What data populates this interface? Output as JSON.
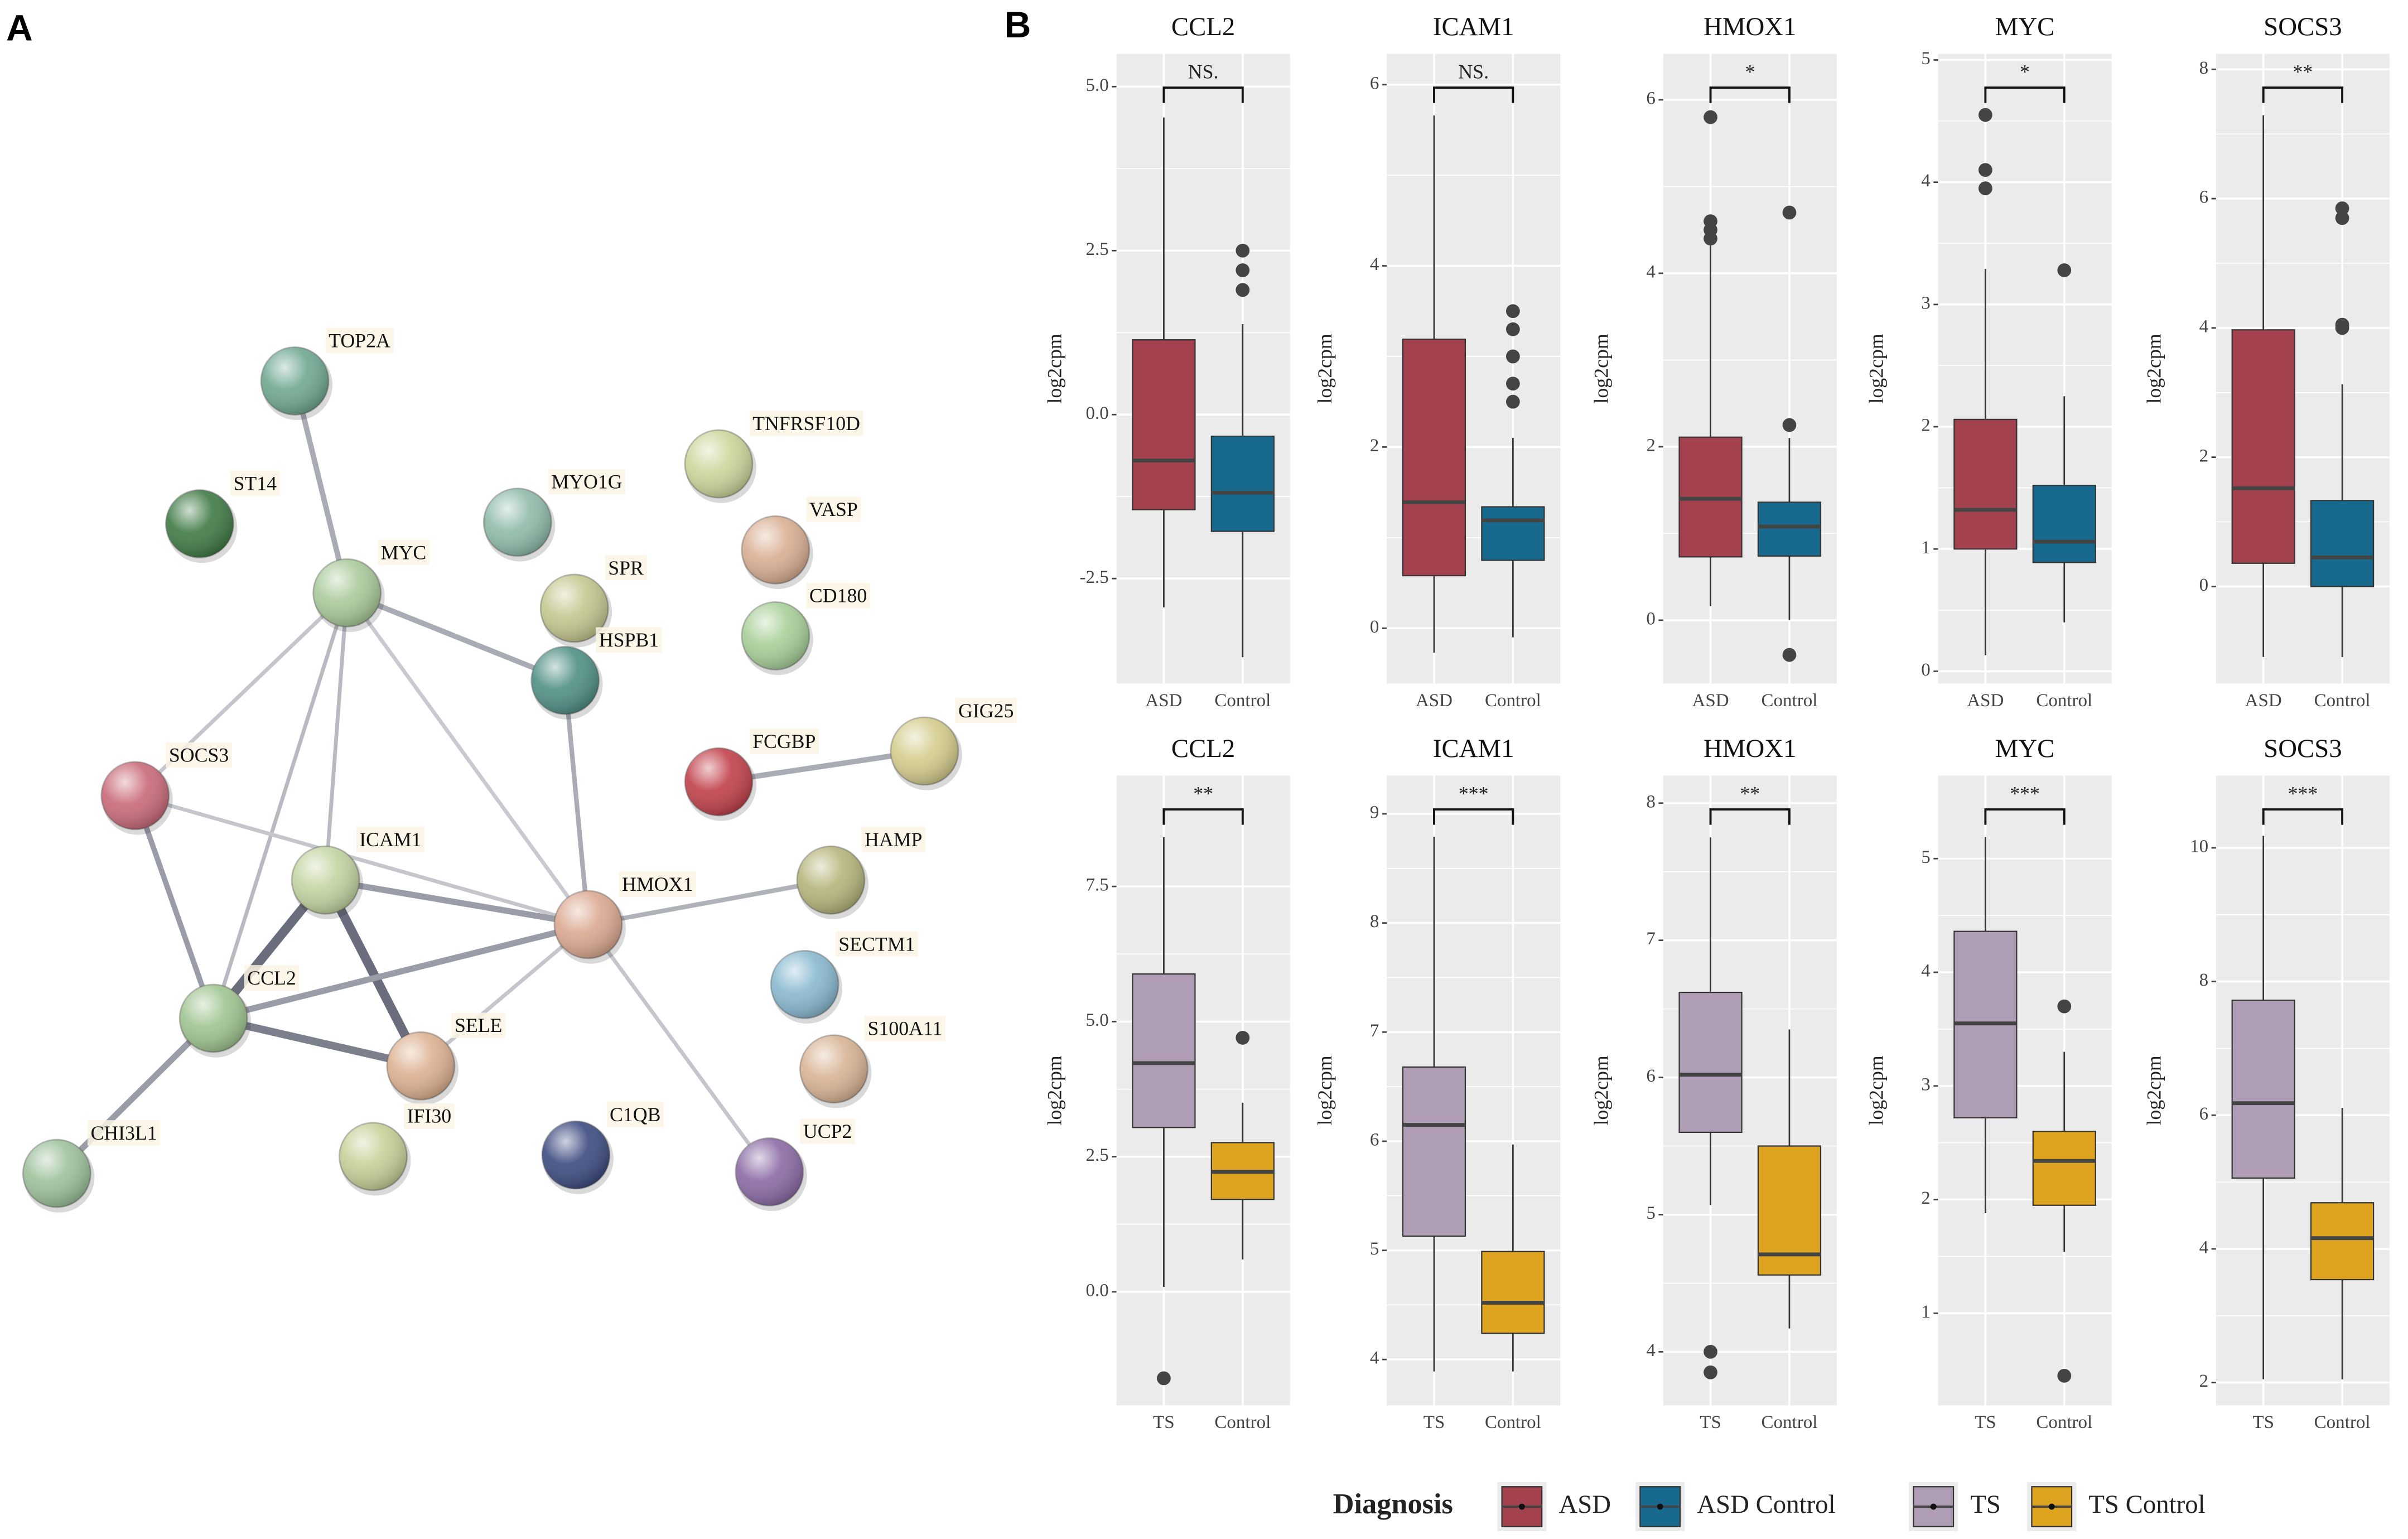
{
  "panel_a_label": "A",
  "panel_b_label": "B",
  "network": {
    "nodes": [
      {
        "label": "TOP2A",
        "color": "#6fa890"
      },
      {
        "label": "ST14",
        "color": "#3f7a45"
      },
      {
        "label": "MYC",
        "color": "#a9c99a"
      },
      {
        "label": "MYO1G",
        "color": "#8fbba8"
      },
      {
        "label": "TNFRSF10D",
        "color": "#cbd69a"
      },
      {
        "label": "VASP",
        "color": "#d9ae92"
      },
      {
        "label": "SPR",
        "color": "#c4c68e"
      },
      {
        "label": "CD180",
        "color": "#a8cf98"
      },
      {
        "label": "HSPB1",
        "color": "#4f8f85"
      },
      {
        "label": "FCGBP",
        "color": "#c1404a"
      },
      {
        "label": "GIG25",
        "color": "#d4cc8c"
      },
      {
        "label": "SOCS3",
        "color": "#c96a78"
      },
      {
        "label": "ICAM1",
        "color": "#c2d4a0"
      },
      {
        "label": "HAMP",
        "color": "#b5b47a"
      },
      {
        "label": "HMOX1",
        "color": "#dba890"
      },
      {
        "label": "SECTM1",
        "color": "#88b8cf"
      },
      {
        "label": "CCL2",
        "color": "#9fc490"
      },
      {
        "label": "SELE",
        "color": "#dcb090"
      },
      {
        "label": "S100A11",
        "color": "#d8b394"
      },
      {
        "label": "CHI3L1",
        "color": "#9cc09a"
      },
      {
        "label": "IFI30",
        "color": "#c7cf96"
      },
      {
        "label": "C1QB",
        "color": "#3c4a80"
      },
      {
        "label": "UCP2",
        "color": "#8a6aa5"
      }
    ]
  },
  "chart_data": [
    {
      "type": "box",
      "title": "CCL2",
      "ylabel": "log2cpm",
      "categories": [
        "ASD",
        "Control"
      ],
      "colors": [
        "#a3424e",
        "#176a8e"
      ],
      "ylim": [
        -4.1,
        5.5
      ],
      "yticks": [
        {
          "value": 5,
          "label": "5.0"
        },
        2.5,
        {
          "value": 0,
          "label": "0.0"
        },
        -2.5
      ],
      "significance": "NS.",
      "boxes": [
        {
          "q1": -1.45,
          "median": -0.7,
          "q3": 1.14,
          "whislo": -2.94,
          "whishi": 4.53,
          "fliers": []
        },
        {
          "q1": -1.78,
          "median": -1.19,
          "q3": -0.33,
          "whislo": -3.7,
          "whishi": 1.38,
          "fliers": [
            2.5,
            2.2,
            1.9
          ]
        }
      ]
    },
    {
      "type": "box",
      "title": "ICAM1",
      "ylabel": "log2cpm",
      "categories": [
        "ASD",
        "Control"
      ],
      "colors": [
        "#a3424e",
        "#176a8e"
      ],
      "ylim": [
        -0.61,
        6.34
      ],
      "yticks": [
        6,
        4,
        2,
        0
      ],
      "significance": "NS.",
      "boxes": [
        {
          "q1": 0.58,
          "median": 1.39,
          "q3": 3.19,
          "whislo": -0.27,
          "whishi": 5.66,
          "fliers": []
        },
        {
          "q1": 0.75,
          "median": 1.19,
          "q3": 1.34,
          "whislo": -0.1,
          "whishi": 2.1,
          "fliers": [
            3.5,
            3.3,
            3.0,
            2.7,
            2.5
          ]
        }
      ]
    },
    {
      "type": "box",
      "title": "HMOX1",
      "ylabel": "log2cpm",
      "categories": [
        "ASD",
        "Control"
      ],
      "colors": [
        "#a3424e",
        "#176a8e"
      ],
      "ylim": [
        -0.73,
        6.53
      ],
      "yticks": [
        6,
        4,
        2,
        0
      ],
      "significance": "*",
      "boxes": [
        {
          "q1": 0.73,
          "median": 1.4,
          "q3": 2.11,
          "whislo": 0.16,
          "whishi": 4.32,
          "fliers": [
            5.8,
            4.6,
            4.5,
            4.4
          ]
        },
        {
          "q1": 0.74,
          "median": 1.08,
          "q3": 1.36,
          "whislo": 0,
          "whishi": 2.1,
          "fliers": [
            4.7,
            2.25,
            -0.4
          ]
        }
      ]
    },
    {
      "type": "box",
      "title": "MYC",
      "ylabel": "log2cpm",
      "categories": [
        "ASD",
        "Control"
      ],
      "colors": [
        "#a3424e",
        "#176a8e"
      ],
      "ylim": [
        -0.1,
        5.05
      ],
      "yticks": [
        5,
        4,
        3,
        2,
        1,
        0
      ],
      "significance": "*",
      "boxes": [
        {
          "q1": 1.0,
          "median": 1.32,
          "q3": 2.06,
          "whislo": 0.13,
          "whishi": 3.29,
          "fliers": [
            4.55,
            4.1,
            3.95
          ]
        },
        {
          "q1": 0.89,
          "median": 1.06,
          "q3": 1.52,
          "whislo": 0.4,
          "whishi": 2.25,
          "fliers": [
            3.28
          ]
        }
      ]
    },
    {
      "type": "box",
      "title": "SOCS3",
      "ylabel": "log2cpm",
      "categories": [
        "ASD",
        "Control"
      ],
      "colors": [
        "#a3424e",
        "#176a8e"
      ],
      "ylim": [
        -1.5,
        8.24
      ],
      "yticks": [
        8,
        6,
        4,
        2,
        0
      ],
      "significance": "**",
      "boxes": [
        {
          "q1": 0.36,
          "median": 1.52,
          "q3": 3.97,
          "whislo": -1.09,
          "whishi": 7.29,
          "fliers": []
        },
        {
          "q1": 0,
          "median": 0.45,
          "q3": 1.33,
          "whislo": -1.09,
          "whishi": 3.13,
          "fliers": [
            5.85,
            5.7,
            4.05,
            4.0
          ]
        }
      ]
    },
    {
      "type": "box",
      "title": "CCL2",
      "ylabel": "log2cpm",
      "categories": [
        "TS",
        "Control"
      ],
      "colors": [
        "#ae9db4",
        "#dfa41f"
      ],
      "ylim": [
        -2.1,
        9.55
      ],
      "yticks": [
        7.5,
        {
          "value": 5,
          "label": "5.0"
        },
        2.5,
        {
          "value": 0,
          "label": "0.0"
        }
      ],
      "significance": "**",
      "boxes": [
        {
          "q1": 3.04,
          "median": 4.23,
          "q3": 5.88,
          "whislo": 0.09,
          "whishi": 8.41,
          "fliers": [
            -1.6
          ]
        },
        {
          "q1": 1.71,
          "median": 2.22,
          "q3": 2.76,
          "whislo": 0.6,
          "whishi": 3.5,
          "fliers": [
            4.7
          ]
        }
      ]
    },
    {
      "type": "box",
      "title": "ICAM1",
      "ylabel": "log2cpm",
      "categories": [
        "TS",
        "Control"
      ],
      "colors": [
        "#ae9db4",
        "#dfa41f"
      ],
      "ylim": [
        3.58,
        9.35
      ],
      "yticks": [
        9,
        8,
        7,
        6,
        5,
        4
      ],
      "significance": "***",
      "boxes": [
        {
          "q1": 5.13,
          "median": 6.15,
          "q3": 6.68,
          "whislo": 3.89,
          "whishi": 8.79,
          "fliers": []
        },
        {
          "q1": 4.24,
          "median": 4.52,
          "q3": 4.99,
          "whislo": 3.89,
          "whishi": 5.97,
          "fliers": []
        }
      ]
    },
    {
      "type": "box",
      "title": "HMOX1",
      "ylabel": "log2cpm",
      "categories": [
        "TS",
        "Control"
      ],
      "colors": [
        "#ae9db4",
        "#dfa41f"
      ],
      "ylim": [
        3.61,
        8.2
      ],
      "yticks": [
        8,
        7,
        6,
        5,
        4
      ],
      "significance": "**",
      "boxes": [
        {
          "q1": 5.6,
          "median": 6.02,
          "q3": 6.62,
          "whislo": 5.07,
          "whishi": 7.75,
          "fliers": [
            4.0,
            3.85
          ]
        },
        {
          "q1": 4.56,
          "median": 4.71,
          "q3": 5.5,
          "whislo": 4.17,
          "whishi": 6.35,
          "fliers": []
        }
      ]
    },
    {
      "type": "box",
      "title": "MYC",
      "ylabel": "log2cpm",
      "categories": [
        "TS",
        "Control"
      ],
      "colors": [
        "#ae9db4",
        "#dfa41f"
      ],
      "ylim": [
        0.19,
        5.73
      ],
      "yticks": [
        5,
        4,
        3,
        2,
        1
      ],
      "significance": "***",
      "boxes": [
        {
          "q1": 2.72,
          "median": 3.55,
          "q3": 4.36,
          "whislo": 1.88,
          "whishi": 5.19,
          "fliers": []
        },
        {
          "q1": 1.95,
          "median": 2.34,
          "q3": 2.6,
          "whislo": 1.54,
          "whishi": 3.3,
          "fliers": [
            3.7,
            0.45
          ]
        }
      ]
    },
    {
      "type": "box",
      "title": "SOCS3",
      "ylabel": "log2cpm",
      "categories": [
        "TS",
        "Control"
      ],
      "colors": [
        "#ae9db4",
        "#dfa41f"
      ],
      "ylim": [
        1.66,
        11.08
      ],
      "yticks": [
        10,
        8,
        6,
        4,
        2
      ],
      "significance": "***",
      "boxes": [
        {
          "q1": 5.06,
          "median": 6.18,
          "q3": 7.72,
          "whislo": 2.05,
          "whishi": 10.18,
          "fliers": []
        },
        {
          "q1": 3.54,
          "median": 4.16,
          "q3": 4.69,
          "whislo": 2.05,
          "whishi": 6.11,
          "fliers": []
        }
      ]
    }
  ],
  "legend": {
    "title": "Diagnosis",
    "entries": [
      {
        "name": "ASD",
        "color": "#a3424e"
      },
      {
        "name": "ASD Control",
        "color": "#176a8e"
      },
      {
        "name": "TS",
        "color": "#ae9db4"
      },
      {
        "name": "TS Control",
        "color": "#dfa41f"
      }
    ]
  }
}
